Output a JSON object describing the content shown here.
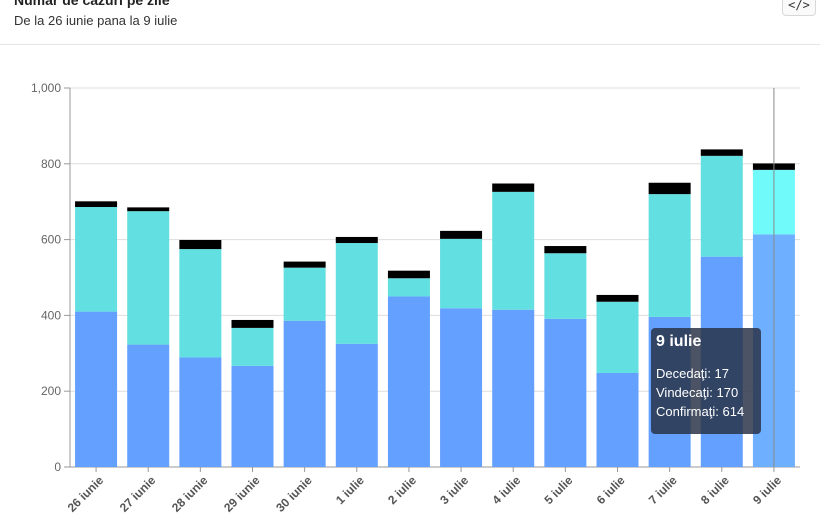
{
  "header": {
    "title": "Număr de cazuri pe zile",
    "subtitle": "De la 26 iunie pana la 9 iulie",
    "embed_icon": "</>"
  },
  "colors": {
    "confirmed": "#64a0ff",
    "cured": "#62dfe0",
    "deceased": "#000000",
    "confirmed_highlight": "#6eb0ff",
    "cured_highlight": "#70fafa",
    "grid": "#dddddd",
    "axis": "#999999"
  },
  "chart_data": {
    "type": "bar",
    "stacked": true,
    "categories": [
      "26 iunie",
      "27 iunie",
      "28 iunie",
      "29 iunie",
      "30 iunie",
      "1 iulie",
      "2 iulie",
      "3 iulie",
      "4 iulie",
      "5 iulie",
      "6 iulie",
      "7 iulie",
      "8 iulie",
      "9 iulie"
    ],
    "series": [
      {
        "name": "Confirmaţi",
        "key": "confirmed",
        "values": [
          410,
          323,
          289,
          267,
          386,
          325,
          450,
          419,
          415,
          391,
          248,
          396,
          555,
          614
        ]
      },
      {
        "name": "Vindecaţi",
        "key": "cured",
        "values": [
          276,
          352,
          286,
          100,
          140,
          266,
          48,
          183,
          311,
          173,
          188,
          324,
          266,
          170
        ]
      },
      {
        "name": "Decedaţi",
        "key": "deceased",
        "values": [
          15,
          10,
          24,
          21,
          16,
          16,
          20,
          21,
          22,
          19,
          18,
          30,
          17,
          17
        ]
      }
    ],
    "ylim": [
      0,
      1000
    ],
    "yticks": [
      0,
      200,
      400,
      600,
      800,
      1000
    ],
    "ytick_labels": [
      "0",
      "200",
      "400",
      "600",
      "800",
      "1,000"
    ],
    "highlighted_index": 13,
    "grid": true
  },
  "tooltip": {
    "title": "9 iulie",
    "rows": [
      {
        "label": "Decedaţi",
        "value": "17"
      },
      {
        "label": "Vindecaţi",
        "value": "170"
      },
      {
        "label": "Confirmaţi",
        "value": "614"
      }
    ]
  }
}
